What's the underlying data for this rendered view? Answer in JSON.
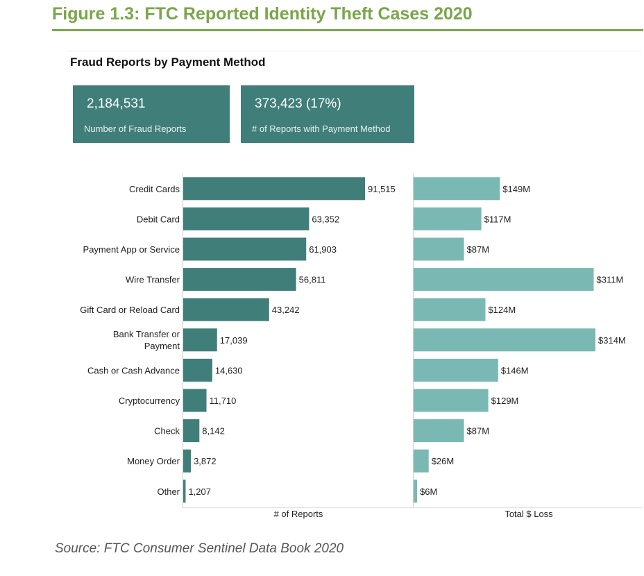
{
  "figure_title": "Figure 1.3: FTC Reported Identity Theft Cases 2020",
  "chart_title": "Fraud Reports by Payment Method",
  "kpis": [
    {
      "value": "2,184,531",
      "label": "Number of Fraud Reports"
    },
    {
      "value": "373,423  (17%)",
      "label": "# of Reports with Payment Method"
    }
  ],
  "source": "Source: FTC Consumer Sentinel Data Book 2020",
  "colors": {
    "title": "#7aa64a",
    "reports_bar": "#407e79",
    "loss_bar": "#7ab8b3",
    "kpi_bg": "#407e79"
  },
  "chart_data": {
    "type": "bar",
    "orientation": "horizontal",
    "categories": [
      "Credit Cards",
      "Debit Card",
      "Payment App or Service",
      "Wire Transfer",
      "Gift Card or Reload Card",
      "Bank Transfer or Payment",
      "Cash or Cash Advance",
      "Cryptocurrency",
      "Check",
      "Money Order",
      "Other"
    ],
    "series": [
      {
        "name": "# of Reports",
        "values": [
          91515,
          63352,
          61903,
          56811,
          43242,
          17039,
          14630,
          11710,
          8142,
          3872,
          1207
        ],
        "labels": [
          "91,515",
          "63,352",
          "61,903",
          "56,811",
          "43,242",
          "17,039",
          "14,630",
          "11,710",
          "8,142",
          "3,872",
          "1,207"
        ]
      },
      {
        "name": "Total $ Loss",
        "values": [
          149,
          117,
          87,
          311,
          124,
          314,
          146,
          129,
          87,
          26,
          6
        ],
        "labels": [
          "$149M",
          "$117M",
          "$87M",
          "$311M",
          "$124M",
          "$314M",
          "$146M",
          "$129M",
          "$87M",
          "$26M",
          "$6M"
        ]
      }
    ],
    "xlabel_reports": "# of Reports",
    "xlabel_loss": "Total $ Loss"
  }
}
